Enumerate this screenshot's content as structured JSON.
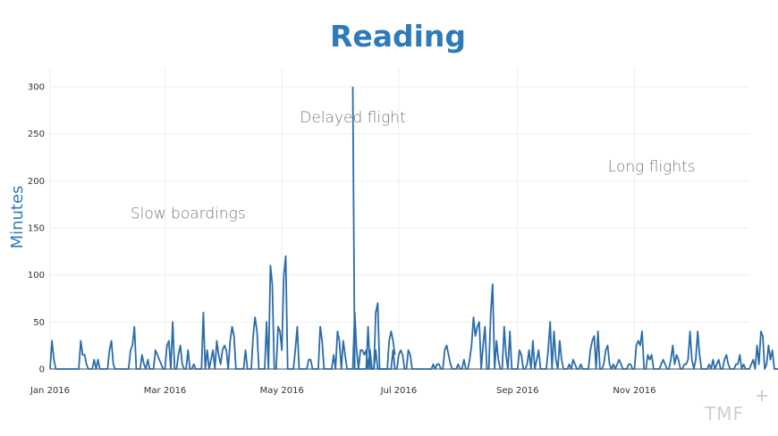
{
  "chart_data": {
    "type": "line",
    "title": "Reading",
    "xlabel": "",
    "ylabel": "Minutes",
    "x_range": [
      "2016-01-01",
      "2016-12-31"
    ],
    "ylim": [
      0,
      320
    ],
    "y_ticks": [
      0,
      50,
      100,
      150,
      200,
      250,
      300
    ],
    "x_ticks": [
      {
        "date": "2016-01-01",
        "label": "Jan 2016"
      },
      {
        "date": "2016-03-01",
        "label": "Mar 2016"
      },
      {
        "date": "2016-05-01",
        "label": "May 2016"
      },
      {
        "date": "2016-07-01",
        "label": "Jul 2016"
      },
      {
        "date": "2016-09-01",
        "label": "Sep 2016"
      },
      {
        "date": "2016-11-01",
        "label": "Nov 2016"
      }
    ],
    "grid": true,
    "annotations": [
      {
        "text": "Delayed flight",
        "date": "2016-06-07",
        "value": 262
      },
      {
        "text": "Slow boardings",
        "date": "2016-03-13",
        "value": 160
      },
      {
        "text": "Long flights",
        "date": "2016-11-10",
        "value": 210
      }
    ],
    "segments": [
      {
        "start": "2016-01-01",
        "values": [
          0,
          30,
          10,
          0,
          0,
          0,
          0,
          0,
          0,
          0,
          0,
          0,
          0,
          0,
          0,
          0,
          30,
          15,
          15,
          5,
          0,
          0,
          0,
          10,
          0,
          10,
          0,
          0,
          0,
          0,
          0,
          20,
          30,
          5,
          0,
          0,
          0,
          0,
          0,
          0,
          0,
          0,
          20,
          25,
          45,
          0,
          0,
          0,
          15,
          5,
          0,
          10,
          0,
          0,
          0,
          20,
          15,
          10,
          5,
          0,
          0,
          25,
          30,
          0,
          50,
          0,
          0,
          15,
          25,
          5,
          0,
          0,
          20,
          0,
          0,
          5,
          0,
          0,
          0,
          0,
          60,
          0,
          20,
          0,
          10,
          20,
          0,
          30,
          15,
          5,
          20,
          25,
          20,
          0,
          30,
          45,
          35,
          0,
          0,
          0,
          0,
          0,
          20,
          0,
          0,
          0,
          35,
          55,
          40,
          0,
          0,
          0,
          0,
          50,
          0,
          110,
          90,
          0,
          0,
          45,
          40,
          20,
          100,
          120,
          0,
          0,
          0,
          0,
          20,
          45,
          0,
          0,
          0,
          0,
          0,
          10,
          10,
          0,
          0,
          0,
          0,
          45,
          30,
          0,
          0,
          0,
          0,
          0,
          15,
          0,
          40,
          30,
          0,
          30,
          15,
          0,
          0,
          0,
          0,
          60,
          20,
          0,
          0,
          0,
          0,
          0,
          45,
          0,
          0,
          0,
          60,
          70,
          0,
          0,
          0,
          0,
          0,
          30,
          40,
          30,
          15
        ]
      },
      {
        "start": "2016-06-07",
        "values": [
          300,
          0,
          0,
          0,
          20,
          20,
          15,
          20,
          0,
          20,
          0,
          0,
          20,
          0,
          0,
          0,
          0,
          0,
          0,
          0,
          0,
          20,
          0,
          0,
          15,
          20,
          15,
          0,
          0,
          20,
          15,
          0,
          0,
          0,
          0,
          0,
          0,
          0,
          0,
          0,
          0,
          0,
          5,
          0,
          5,
          5,
          0,
          0,
          20,
          25,
          15,
          5,
          0,
          0,
          0,
          5,
          0,
          0,
          10,
          0,
          0,
          10,
          25,
          55,
          35,
          45,
          50,
          0,
          25,
          45,
          0,
          0,
          60,
          90,
          0,
          30,
          10,
          0,
          0,
          45,
          15,
          0,
          40,
          0,
          0,
          0,
          0,
          20,
          15,
          0,
          0,
          5,
          20,
          0,
          30,
          0,
          10,
          20,
          0,
          0,
          0,
          0,
          20,
          50,
          0,
          40,
          10,
          0,
          30,
          10,
          0,
          0,
          0,
          5,
          0,
          10,
          5,
          0,
          0,
          5,
          0,
          0,
          0,
          0,
          20,
          30,
          35,
          0,
          40,
          0,
          0,
          5,
          20,
          25,
          5,
          0,
          5,
          0,
          5,
          10,
          5,
          0,
          0,
          0,
          5,
          5,
          0,
          0,
          25,
          30,
          25,
          40,
          0,
          0,
          15,
          10,
          15,
          0,
          0,
          0,
          0,
          5,
          10,
          5,
          0,
          0,
          10,
          25,
          5,
          15,
          10,
          0,
          0,
          5,
          5,
          10,
          40,
          10,
          0,
          10,
          40,
          15,
          0,
          0,
          0,
          0,
          5,
          0,
          10,
          0,
          5,
          10,
          0,
          0,
          10,
          15,
          5,
          0,
          0,
          0,
          5,
          5,
          15,
          0,
          5,
          0,
          0,
          0,
          5,
          10,
          0,
          25,
          5,
          40,
          35,
          0,
          5,
          25,
          10,
          20,
          0,
          0,
          0,
          0,
          20,
          5,
          10,
          5,
          0,
          0,
          0,
          20,
          5,
          0,
          0,
          0,
          10,
          20
        ]
      }
    ]
  },
  "branding": {
    "logo": "TMF"
  }
}
